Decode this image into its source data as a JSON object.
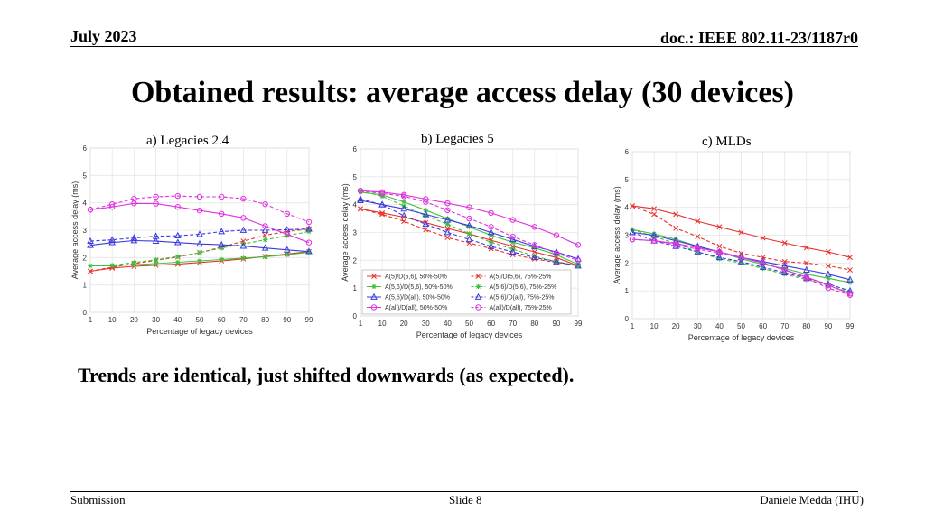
{
  "header": {
    "date": "July 2023",
    "doc": "doc.: IEEE 802.11-23/1187r0"
  },
  "title": "Obtained results: average access delay (30 devices)",
  "conclusion": "Trends are identical, just shifted downwards (as expected).",
  "footer": {
    "left": "Submission",
    "center": "Slide 8",
    "right": "Daniele Medda (IHU)"
  },
  "colors": {
    "A_5_D_5_6": "#e8312b",
    "A_5_6_D_5_6": "#3ec23e",
    "A_5_6_D_all": "#3a3adf",
    "A_all_D_all": "#e030e0"
  },
  "chart_data": [
    {
      "type": "line",
      "title": "a) Legacies 2.4",
      "xlabel": "Percentage of legacy devices",
      "ylabel": "Average access delay (ms)",
      "x": [
        1,
        10,
        20,
        30,
        40,
        50,
        60,
        70,
        80,
        90,
        99
      ],
      "ylim": [
        0,
        6
      ],
      "yticks": [
        0,
        1,
        2,
        3,
        4,
        5,
        6
      ],
      "grid": true,
      "series": [
        {
          "name": "A(5)/D(5,6), 50%-50%",
          "color": "#e8312b",
          "dashed": false,
          "marker": "x",
          "values": [
            1.5,
            1.62,
            1.68,
            1.72,
            1.76,
            1.82,
            1.88,
            1.95,
            2.04,
            2.13,
            2.22
          ]
        },
        {
          "name": "A(5)/D(5,6), 75%-25%",
          "color": "#e8312b",
          "dashed": true,
          "marker": "x",
          "values": [
            1.5,
            1.65,
            1.78,
            1.9,
            2.02,
            2.18,
            2.38,
            2.6,
            2.82,
            2.95,
            3.05
          ]
        },
        {
          "name": "A(5,6)/D(5,6), 50%-50%",
          "color": "#3ec23e",
          "dashed": false,
          "marker": "*",
          "values": [
            1.7,
            1.7,
            1.74,
            1.78,
            1.83,
            1.88,
            1.93,
            1.98,
            2.03,
            2.1,
            2.2
          ]
        },
        {
          "name": "A(5,6)/D(5,6), 75%-25%",
          "color": "#3ec23e",
          "dashed": true,
          "marker": "*",
          "values": [
            1.7,
            1.72,
            1.82,
            1.92,
            2.04,
            2.18,
            2.35,
            2.5,
            2.65,
            2.8,
            2.95
          ]
        },
        {
          "name": "A(5,6)/D(all), 50%-50%",
          "color": "#3a3adf",
          "dashed": false,
          "marker": "triangle",
          "values": [
            2.45,
            2.55,
            2.62,
            2.6,
            2.55,
            2.5,
            2.47,
            2.42,
            2.35,
            2.28,
            2.22
          ]
        },
        {
          "name": "A(5,6)/D(all), 75%-25%",
          "color": "#3a3adf",
          "dashed": true,
          "marker": "triangle",
          "values": [
            2.6,
            2.65,
            2.72,
            2.78,
            2.8,
            2.85,
            2.95,
            3.0,
            3.0,
            3.02,
            3.05
          ]
        },
        {
          "name": "A(all)/D(all), 50%-50%",
          "color": "#e030e0",
          "dashed": false,
          "marker": "circle",
          "values": [
            3.75,
            3.85,
            3.98,
            3.97,
            3.85,
            3.72,
            3.6,
            3.45,
            3.15,
            2.85,
            2.55
          ]
        },
        {
          "name": "A(all)/D(all), 75%-25%",
          "color": "#e030e0",
          "dashed": true,
          "marker": "circle",
          "values": [
            3.75,
            3.95,
            4.15,
            4.22,
            4.25,
            4.22,
            4.22,
            4.15,
            3.95,
            3.6,
            3.3
          ]
        }
      ]
    },
    {
      "type": "line",
      "title": "b) Legacies 5",
      "xlabel": "Percentage of legacy devices",
      "ylabel": "Average access delay (ms)",
      "x": [
        1,
        10,
        20,
        30,
        40,
        50,
        60,
        70,
        80,
        90,
        99
      ],
      "ylim": [
        0,
        6
      ],
      "yticks": [
        0,
        1,
        2,
        3,
        4,
        5,
        6
      ],
      "grid": true,
      "legend_position": "bottom",
      "series": [
        {
          "name": "A(5)/D(5,6), 50%-50%",
          "color": "#e8312b",
          "dashed": false,
          "marker": "x",
          "values": [
            3.85,
            3.7,
            3.55,
            3.35,
            3.15,
            2.95,
            2.72,
            2.5,
            2.3,
            2.1,
            1.8
          ]
        },
        {
          "name": "A(5)/D(5,6), 75%-25%",
          "color": "#e8312b",
          "dashed": true,
          "marker": "x",
          "values": [
            3.85,
            3.65,
            3.4,
            3.1,
            2.82,
            2.62,
            2.42,
            2.2,
            2.05,
            1.92,
            1.8
          ]
        },
        {
          "name": "A(5,6)/D(5,6), 50%-50%",
          "color": "#3ec23e",
          "dashed": false,
          "marker": "*",
          "values": [
            4.45,
            4.35,
            4.1,
            3.8,
            3.5,
            3.2,
            2.9,
            2.65,
            2.45,
            2.2,
            1.85
          ]
        },
        {
          "name": "A(5,6)/D(5,6), 75%-25%",
          "color": "#3ec23e",
          "dashed": true,
          "marker": "*",
          "values": [
            4.5,
            4.3,
            3.95,
            3.6,
            3.3,
            2.95,
            2.65,
            2.4,
            2.15,
            1.95,
            1.8
          ]
        },
        {
          "name": "A(5,6)/D(all), 50%-50%",
          "color": "#3a3adf",
          "dashed": false,
          "marker": "triangle",
          "values": [
            4.15,
            4.0,
            3.85,
            3.65,
            3.45,
            3.25,
            3.0,
            2.75,
            2.5,
            2.3,
            2.05
          ]
        },
        {
          "name": "A(5,6)/D(all), 75%-25%",
          "color": "#3a3adf",
          "dashed": true,
          "marker": "triangle",
          "values": [
            4.2,
            4.0,
            3.6,
            3.3,
            3.0,
            2.75,
            2.5,
            2.3,
            2.1,
            1.95,
            1.8
          ]
        },
        {
          "name": "A(all)/D(all), 50%-50%",
          "color": "#e030e0",
          "dashed": false,
          "marker": "circle",
          "values": [
            4.5,
            4.45,
            4.35,
            4.2,
            4.05,
            3.9,
            3.7,
            3.45,
            3.2,
            2.9,
            2.55
          ]
        },
        {
          "name": "A(all)/D(all), 75%-25%",
          "color": "#e030e0",
          "dashed": true,
          "marker": "circle",
          "values": [
            4.5,
            4.4,
            4.3,
            4.1,
            3.8,
            3.5,
            3.2,
            2.85,
            2.55,
            2.25,
            2.0
          ]
        }
      ]
    },
    {
      "type": "line",
      "title": "c) MLDs",
      "xlabel": "Percentage of legacy devices",
      "ylabel": "Average access delay (ms)",
      "x": [
        1,
        10,
        20,
        30,
        40,
        50,
        60,
        70,
        80,
        90,
        99
      ],
      "ylim": [
        0,
        6
      ],
      "yticks": [
        0,
        1,
        2,
        3,
        4,
        5,
        6
      ],
      "grid": true,
      "series": [
        {
          "name": "A(5)/D(5,6), 50%-50%",
          "color": "#e8312b",
          "dashed": false,
          "marker": "x",
          "values": [
            4.05,
            3.95,
            3.75,
            3.5,
            3.3,
            3.1,
            2.9,
            2.72,
            2.55,
            2.4,
            2.2
          ]
        },
        {
          "name": "A(5)/D(5,6), 75%-25%",
          "color": "#e8312b",
          "dashed": true,
          "marker": "x",
          "values": [
            4.05,
            3.75,
            3.25,
            2.95,
            2.6,
            2.35,
            2.2,
            2.05,
            2.0,
            1.9,
            1.75
          ]
        },
        {
          "name": "A(5,6)/D(5,6), 50%-50%",
          "color": "#3ec23e",
          "dashed": false,
          "marker": "*",
          "values": [
            3.2,
            3.05,
            2.85,
            2.6,
            2.4,
            2.15,
            1.95,
            1.8,
            1.6,
            1.45,
            1.3
          ]
        },
        {
          "name": "A(5,6)/D(5,6), 75%-25%",
          "color": "#3ec23e",
          "dashed": true,
          "marker": "*",
          "values": [
            3.2,
            2.95,
            2.7,
            2.4,
            2.15,
            2.0,
            1.8,
            1.6,
            1.4,
            1.2,
            0.95
          ]
        },
        {
          "name": "A(5,6)/D(all), 50%-50%",
          "color": "#3a3adf",
          "dashed": false,
          "marker": "triangle",
          "values": [
            3.1,
            3.0,
            2.8,
            2.6,
            2.4,
            2.2,
            2.05,
            1.9,
            1.75,
            1.6,
            1.4
          ]
        },
        {
          "name": "A(5,6)/D(all), 75%-25%",
          "color": "#3a3adf",
          "dashed": true,
          "marker": "triangle",
          "values": [
            3.1,
            2.8,
            2.6,
            2.4,
            2.2,
            2.05,
            1.85,
            1.65,
            1.45,
            1.25,
            1.0
          ]
        },
        {
          "name": "A(all)/D(all), 50%-50%",
          "color": "#e030e0",
          "dashed": false,
          "marker": "circle",
          "values": [
            2.85,
            2.8,
            2.7,
            2.55,
            2.4,
            2.2,
            2.0,
            1.75,
            1.5,
            1.2,
            0.9
          ]
        },
        {
          "name": "A(all)/D(all), 75%-25%",
          "color": "#e030e0",
          "dashed": true,
          "marker": "circle",
          "values": [
            2.85,
            2.8,
            2.65,
            2.5,
            2.35,
            2.2,
            2.0,
            1.75,
            1.45,
            1.1,
            0.85
          ]
        }
      ]
    }
  ]
}
